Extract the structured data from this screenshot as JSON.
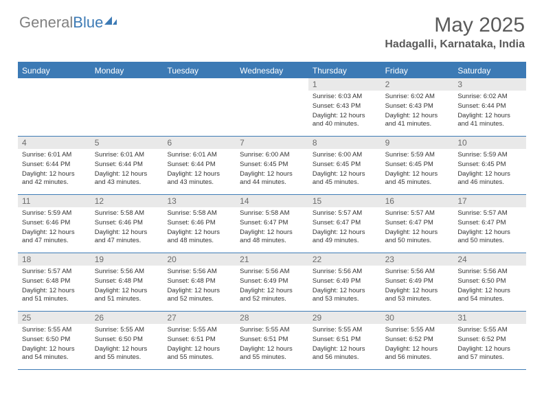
{
  "logo": {
    "text_gray": "General",
    "text_blue": "Blue"
  },
  "title": "May 2025",
  "location": "Hadagalli, Karnataka, India",
  "colors": {
    "accent": "#3c7ab5",
    "header_text": "#5a5a5a",
    "daynum_bg": "#e9e9e9",
    "body_text": "#333333"
  },
  "day_headers": [
    "Sunday",
    "Monday",
    "Tuesday",
    "Wednesday",
    "Thursday",
    "Friday",
    "Saturday"
  ],
  "weeks": [
    [
      {
        "n": "",
        "sunrise": "",
        "sunset": "",
        "daylight": ""
      },
      {
        "n": "",
        "sunrise": "",
        "sunset": "",
        "daylight": ""
      },
      {
        "n": "",
        "sunrise": "",
        "sunset": "",
        "daylight": ""
      },
      {
        "n": "",
        "sunrise": "",
        "sunset": "",
        "daylight": ""
      },
      {
        "n": "1",
        "sunrise": "Sunrise: 6:03 AM",
        "sunset": "Sunset: 6:43 PM",
        "daylight": "Daylight: 12 hours and 40 minutes."
      },
      {
        "n": "2",
        "sunrise": "Sunrise: 6:02 AM",
        "sunset": "Sunset: 6:43 PM",
        "daylight": "Daylight: 12 hours and 41 minutes."
      },
      {
        "n": "3",
        "sunrise": "Sunrise: 6:02 AM",
        "sunset": "Sunset: 6:44 PM",
        "daylight": "Daylight: 12 hours and 41 minutes."
      }
    ],
    [
      {
        "n": "4",
        "sunrise": "Sunrise: 6:01 AM",
        "sunset": "Sunset: 6:44 PM",
        "daylight": "Daylight: 12 hours and 42 minutes."
      },
      {
        "n": "5",
        "sunrise": "Sunrise: 6:01 AM",
        "sunset": "Sunset: 6:44 PM",
        "daylight": "Daylight: 12 hours and 43 minutes."
      },
      {
        "n": "6",
        "sunrise": "Sunrise: 6:01 AM",
        "sunset": "Sunset: 6:44 PM",
        "daylight": "Daylight: 12 hours and 43 minutes."
      },
      {
        "n": "7",
        "sunrise": "Sunrise: 6:00 AM",
        "sunset": "Sunset: 6:45 PM",
        "daylight": "Daylight: 12 hours and 44 minutes."
      },
      {
        "n": "8",
        "sunrise": "Sunrise: 6:00 AM",
        "sunset": "Sunset: 6:45 PM",
        "daylight": "Daylight: 12 hours and 45 minutes."
      },
      {
        "n": "9",
        "sunrise": "Sunrise: 5:59 AM",
        "sunset": "Sunset: 6:45 PM",
        "daylight": "Daylight: 12 hours and 45 minutes."
      },
      {
        "n": "10",
        "sunrise": "Sunrise: 5:59 AM",
        "sunset": "Sunset: 6:45 PM",
        "daylight": "Daylight: 12 hours and 46 minutes."
      }
    ],
    [
      {
        "n": "11",
        "sunrise": "Sunrise: 5:59 AM",
        "sunset": "Sunset: 6:46 PM",
        "daylight": "Daylight: 12 hours and 47 minutes."
      },
      {
        "n": "12",
        "sunrise": "Sunrise: 5:58 AM",
        "sunset": "Sunset: 6:46 PM",
        "daylight": "Daylight: 12 hours and 47 minutes."
      },
      {
        "n": "13",
        "sunrise": "Sunrise: 5:58 AM",
        "sunset": "Sunset: 6:46 PM",
        "daylight": "Daylight: 12 hours and 48 minutes."
      },
      {
        "n": "14",
        "sunrise": "Sunrise: 5:58 AM",
        "sunset": "Sunset: 6:47 PM",
        "daylight": "Daylight: 12 hours and 48 minutes."
      },
      {
        "n": "15",
        "sunrise": "Sunrise: 5:57 AM",
        "sunset": "Sunset: 6:47 PM",
        "daylight": "Daylight: 12 hours and 49 minutes."
      },
      {
        "n": "16",
        "sunrise": "Sunrise: 5:57 AM",
        "sunset": "Sunset: 6:47 PM",
        "daylight": "Daylight: 12 hours and 50 minutes."
      },
      {
        "n": "17",
        "sunrise": "Sunrise: 5:57 AM",
        "sunset": "Sunset: 6:47 PM",
        "daylight": "Daylight: 12 hours and 50 minutes."
      }
    ],
    [
      {
        "n": "18",
        "sunrise": "Sunrise: 5:57 AM",
        "sunset": "Sunset: 6:48 PM",
        "daylight": "Daylight: 12 hours and 51 minutes."
      },
      {
        "n": "19",
        "sunrise": "Sunrise: 5:56 AM",
        "sunset": "Sunset: 6:48 PM",
        "daylight": "Daylight: 12 hours and 51 minutes."
      },
      {
        "n": "20",
        "sunrise": "Sunrise: 5:56 AM",
        "sunset": "Sunset: 6:48 PM",
        "daylight": "Daylight: 12 hours and 52 minutes."
      },
      {
        "n": "21",
        "sunrise": "Sunrise: 5:56 AM",
        "sunset": "Sunset: 6:49 PM",
        "daylight": "Daylight: 12 hours and 52 minutes."
      },
      {
        "n": "22",
        "sunrise": "Sunrise: 5:56 AM",
        "sunset": "Sunset: 6:49 PM",
        "daylight": "Daylight: 12 hours and 53 minutes."
      },
      {
        "n": "23",
        "sunrise": "Sunrise: 5:56 AM",
        "sunset": "Sunset: 6:49 PM",
        "daylight": "Daylight: 12 hours and 53 minutes."
      },
      {
        "n": "24",
        "sunrise": "Sunrise: 5:56 AM",
        "sunset": "Sunset: 6:50 PM",
        "daylight": "Daylight: 12 hours and 54 minutes."
      }
    ],
    [
      {
        "n": "25",
        "sunrise": "Sunrise: 5:55 AM",
        "sunset": "Sunset: 6:50 PM",
        "daylight": "Daylight: 12 hours and 54 minutes."
      },
      {
        "n": "26",
        "sunrise": "Sunrise: 5:55 AM",
        "sunset": "Sunset: 6:50 PM",
        "daylight": "Daylight: 12 hours and 55 minutes."
      },
      {
        "n": "27",
        "sunrise": "Sunrise: 5:55 AM",
        "sunset": "Sunset: 6:51 PM",
        "daylight": "Daylight: 12 hours and 55 minutes."
      },
      {
        "n": "28",
        "sunrise": "Sunrise: 5:55 AM",
        "sunset": "Sunset: 6:51 PM",
        "daylight": "Daylight: 12 hours and 55 minutes."
      },
      {
        "n": "29",
        "sunrise": "Sunrise: 5:55 AM",
        "sunset": "Sunset: 6:51 PM",
        "daylight": "Daylight: 12 hours and 56 minutes."
      },
      {
        "n": "30",
        "sunrise": "Sunrise: 5:55 AM",
        "sunset": "Sunset: 6:52 PM",
        "daylight": "Daylight: 12 hours and 56 minutes."
      },
      {
        "n": "31",
        "sunrise": "Sunrise: 5:55 AM",
        "sunset": "Sunset: 6:52 PM",
        "daylight": "Daylight: 12 hours and 57 minutes."
      }
    ]
  ]
}
